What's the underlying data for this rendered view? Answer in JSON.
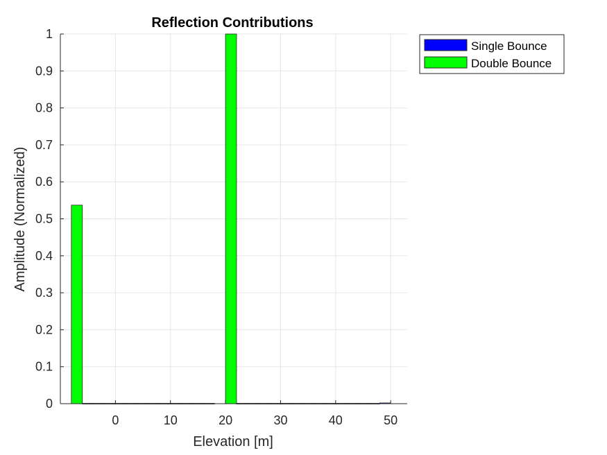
{
  "chart_data": {
    "type": "bar",
    "title": "Reflection Contributions",
    "xlabel": "Elevation [m]",
    "ylabel": "Amplitude (Normalized)",
    "xlim": [
      -10,
      53
    ],
    "ylim": [
      0,
      1
    ],
    "xticks": [
      0,
      10,
      20,
      30,
      40,
      50
    ],
    "yticks": [
      0,
      0.1,
      0.2,
      0.3,
      0.4,
      0.5,
      0.6,
      0.7,
      0.8,
      0.9,
      1
    ],
    "ytick_labels": [
      "0",
      "0.1",
      "0.2",
      "0.3",
      "0.4",
      "0.5",
      "0.6",
      "0.7",
      "0.8",
      "0.9",
      "1"
    ],
    "grid": true,
    "legend_position": "outside-top-right",
    "bar_width": 2,
    "series": [
      {
        "name": "Single Bounce",
        "color": "#0000ff",
        "points": [
          {
            "x": 49,
            "y": 0.002
          }
        ]
      },
      {
        "name": "Double Bounce",
        "color": "#00ff00",
        "points": [
          {
            "x": -7,
            "y": 0.537
          },
          {
            "x": -5,
            "y": 0.001
          },
          {
            "x": -3,
            "y": 0.001
          },
          {
            "x": -1,
            "y": 0.001
          },
          {
            "x": 1,
            "y": 0.001
          },
          {
            "x": 3,
            "y": 0.001
          },
          {
            "x": 5,
            "y": 0.001
          },
          {
            "x": 7,
            "y": 0.001
          },
          {
            "x": 9,
            "y": 0.001
          },
          {
            "x": 11,
            "y": 0.001
          },
          {
            "x": 13,
            "y": 0.001
          },
          {
            "x": 15,
            "y": 0.001
          },
          {
            "x": 17,
            "y": 0.001
          },
          {
            "x": 21,
            "y": 1.0
          },
          {
            "x": 23,
            "y": 0.001
          },
          {
            "x": 25,
            "y": 0.001
          },
          {
            "x": 27,
            "y": 0.001
          },
          {
            "x": 29,
            "y": 0.001
          },
          {
            "x": 31,
            "y": 0.001
          },
          {
            "x": 33,
            "y": 0.001
          },
          {
            "x": 35,
            "y": 0.001
          },
          {
            "x": 37,
            "y": 0.001
          },
          {
            "x": 39,
            "y": 0.001
          },
          {
            "x": 41,
            "y": 0.001
          },
          {
            "x": 43,
            "y": 0.001
          },
          {
            "x": 45,
            "y": 0.001
          },
          {
            "x": 47,
            "y": 0.001
          }
        ]
      }
    ]
  }
}
